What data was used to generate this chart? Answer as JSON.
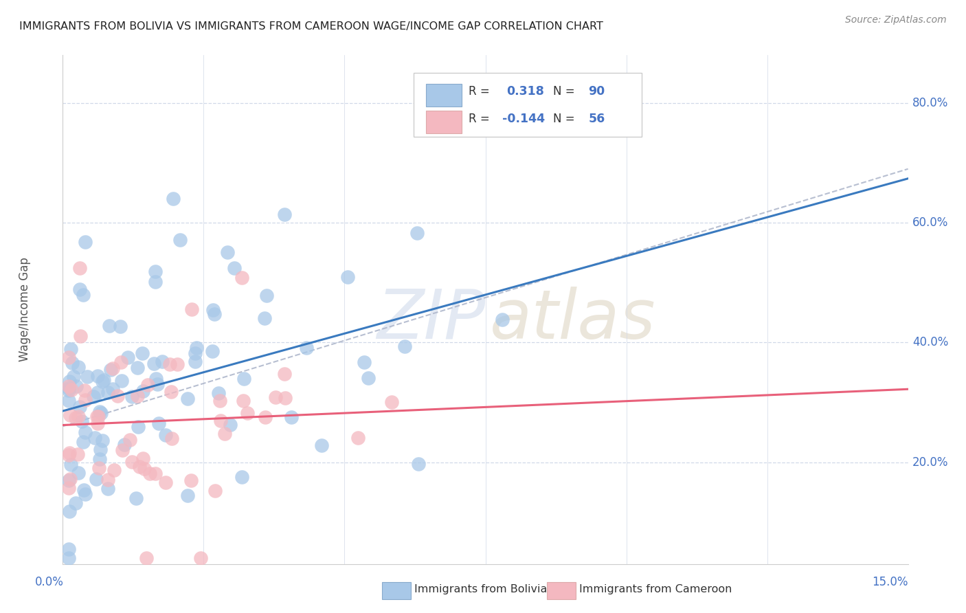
{
  "title": "IMMIGRANTS FROM BOLIVIA VS IMMIGRANTS FROM CAMEROON WAGE/INCOME GAP CORRELATION CHART",
  "source": "Source: ZipAtlas.com",
  "ylabel": "Wage/Income Gap",
  "bolivia_color": "#a8c8e8",
  "cameroon_color": "#f4b8c0",
  "bolivia_line_color": "#3a7abf",
  "cameroon_line_color": "#e8607a",
  "dashed_line_color": "#b0b8cc",
  "xmin": 0.0,
  "xmax": 0.15,
  "ymin": 0.03,
  "ymax": 0.88,
  "yticks": [
    0.2,
    0.4,
    0.6,
    0.8
  ],
  "bolivia_R": 0.318,
  "bolivia_N": 90,
  "cameroon_R": -0.144,
  "cameroon_N": 56,
  "watermark_color": "#d8e4f0",
  "accent_color": "#4472c4",
  "grid_color": "#d0d8e8"
}
